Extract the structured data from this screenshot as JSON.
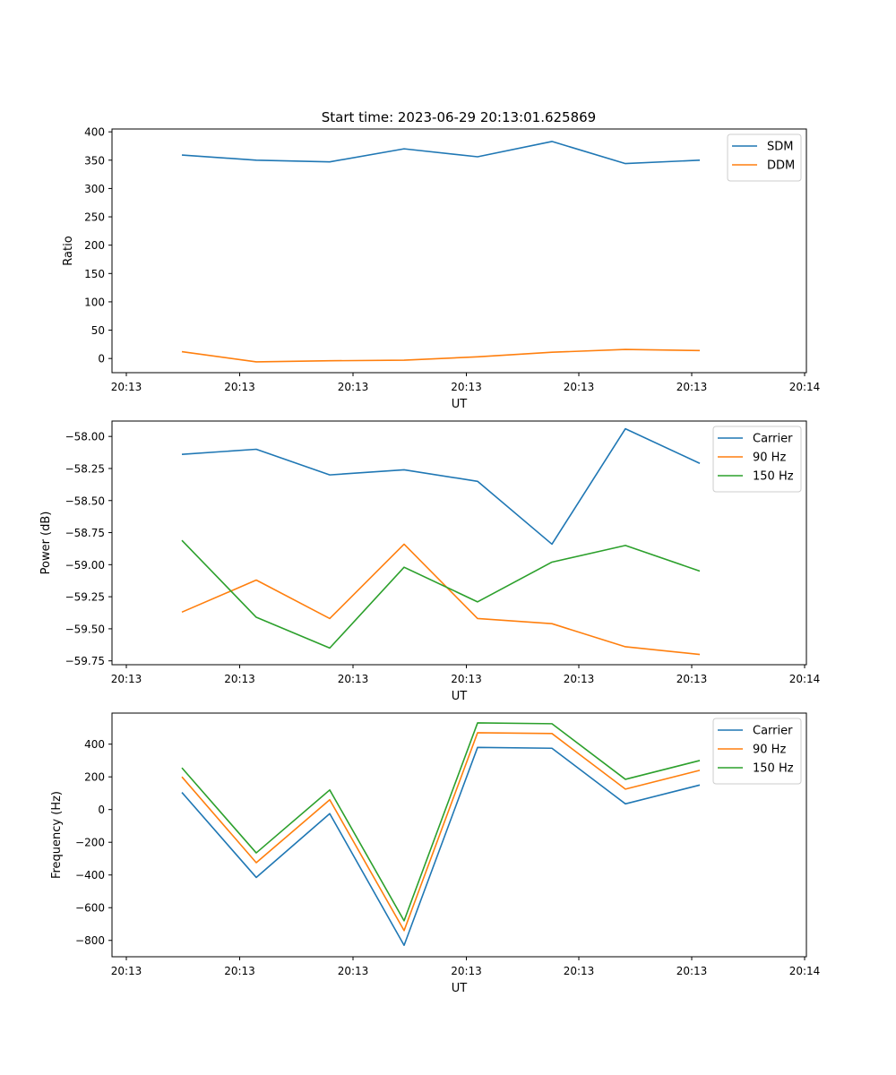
{
  "title": "Start time: 2023-06-29 20:13:01.625869",
  "colors": {
    "series1": "#1f77b4",
    "series2": "#ff7f0e",
    "series3": "#2ca02c",
    "axis": "#000000",
    "legend_border": "#cccccc"
  },
  "chart_data": [
    {
      "type": "line",
      "title": "Start time: 2023-06-29 20:13:01.625869",
      "xlabel": "UT",
      "ylabel": "Ratio",
      "x_tick_labels": [
        "20:13",
        "20:13",
        "20:13",
        "20:13",
        "20:13",
        "20:13",
        "20:14"
      ],
      "y_ticks": [
        0,
        50,
        100,
        150,
        200,
        250,
        300,
        350,
        400
      ],
      "ylim": [
        -25,
        405
      ],
      "grid": false,
      "legend_position": "upper right",
      "series": [
        {
          "name": "SDM",
          "color": "#1f77b4",
          "values": [
            359,
            350,
            347,
            370,
            356,
            383,
            344,
            350
          ]
        },
        {
          "name": "DDM",
          "color": "#ff7f0e",
          "values": [
            12,
            -6,
            -4,
            -3,
            3,
            11,
            16,
            14
          ]
        }
      ]
    },
    {
      "type": "line",
      "xlabel": "UT",
      "ylabel": "Power (dB)",
      "x_tick_labels": [
        "20:13",
        "20:13",
        "20:13",
        "20:13",
        "20:13",
        "20:13",
        "20:14"
      ],
      "y_ticks": [
        -58.0,
        -58.25,
        -58.5,
        -58.75,
        -59.0,
        -59.25,
        -59.5,
        -59.75
      ],
      "y_tick_labels": [
        "−58.00",
        "−58.25",
        "−58.50",
        "−58.75",
        "−59.00",
        "−59.25",
        "−59.50",
        "−59.75"
      ],
      "ylim": [
        -59.78,
        -57.88
      ],
      "grid": false,
      "legend_position": "upper right",
      "series": [
        {
          "name": "Carrier",
          "color": "#1f77b4",
          "values": [
            -58.14,
            -58.1,
            -58.3,
            -58.26,
            -58.35,
            -58.84,
            -57.94,
            -58.21
          ]
        },
        {
          "name": "90 Hz",
          "color": "#ff7f0e",
          "values": [
            -59.37,
            -59.12,
            -59.42,
            -58.84,
            -59.42,
            -59.46,
            -59.64,
            -59.7
          ]
        },
        {
          "name": "150 Hz",
          "color": "#2ca02c",
          "values": [
            -58.81,
            -59.41,
            -59.65,
            -59.02,
            -59.29,
            -58.98,
            -58.85,
            -59.05
          ]
        }
      ]
    },
    {
      "type": "line",
      "xlabel": "UT",
      "ylabel": "Frequency (Hz)",
      "x_tick_labels": [
        "20:13",
        "20:13",
        "20:13",
        "20:13",
        "20:13",
        "20:13",
        "20:14"
      ],
      "y_ticks": [
        -800,
        -600,
        -400,
        -200,
        0,
        200,
        400
      ],
      "y_tick_labels": [
        "−800",
        "−600",
        "−400",
        "−200",
        "0",
        "200",
        "400"
      ],
      "ylim": [
        -900,
        590
      ],
      "grid": false,
      "legend_position": "upper right",
      "series": [
        {
          "name": "Carrier",
          "color": "#1f77b4",
          "values": [
            105,
            -415,
            -25,
            -830,
            380,
            375,
            35,
            150
          ]
        },
        {
          "name": "90 Hz",
          "color": "#ff7f0e",
          "values": [
            200,
            -325,
            60,
            -740,
            470,
            465,
            125,
            240
          ]
        },
        {
          "name": "150 Hz",
          "color": "#2ca02c",
          "values": [
            255,
            -265,
            120,
            -680,
            530,
            525,
            185,
            300
          ]
        }
      ]
    }
  ]
}
